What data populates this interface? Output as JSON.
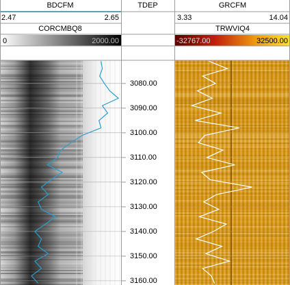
{
  "tracks": [
    {
      "curve": "BDCFM",
      "scale": [
        2.47,
        2.65
      ],
      "image": "CORCMBQ8",
      "image_scale": [
        0,
        {
          "value": 2000,
          "label": "2000.00"
        }
      ]
    },
    {
      "curve": "TDEP"
    },
    {
      "curve": "GRCFM",
      "scale": [
        3.33,
        14.04
      ],
      "image": "TRWVIQ4",
      "image_scale": [
        {
          "value": -32767,
          "label": "-32767.00"
        },
        {
          "value": 32500,
          "label": "32500.00"
        }
      ]
    }
  ],
  "depth_lim": [
    3070.6,
    3161.7
  ],
  "depth_ticks": [
    {
      "value": 3080,
      "label": "3080.00"
    },
    {
      "value": 3090,
      "label": "3090.00"
    },
    {
      "value": 3100,
      "label": "3100.00"
    },
    {
      "value": 3110,
      "label": "3110.00"
    },
    {
      "value": 3120,
      "label": "3120.00"
    },
    {
      "value": 3130,
      "label": "3130.00"
    },
    {
      "value": 3140,
      "label": "3140.00"
    },
    {
      "value": 3150,
      "label": "3150.00"
    },
    {
      "value": 3160,
      "label": "3160.00"
    }
  ],
  "depth": [
    3071,
    3074,
    3077,
    3080,
    3083,
    3086,
    3089,
    3092,
    3095,
    3098,
    3101,
    3104,
    3107,
    3110,
    3113,
    3116,
    3119,
    3122,
    3125,
    3128,
    3131,
    3134,
    3137,
    3140,
    3143,
    3146,
    3149,
    3152,
    3155,
    3158,
    3161
  ],
  "BDCFM": [
    2.62,
    2.622,
    2.618,
    2.625,
    2.633,
    2.646,
    2.622,
    2.63,
    2.617,
    2.62,
    2.592,
    2.575,
    2.56,
    2.555,
    2.54,
    2.562,
    2.545,
    2.531,
    2.541,
    2.526,
    2.531,
    2.552,
    2.537,
    2.521,
    2.531,
    2.526,
    2.541,
    2.521,
    2.531,
    2.516,
    2.526
  ],
  "GRCFM": [
    6.5,
    8.2,
    5.9,
    7.1,
    5.4,
    6.8,
    4.9,
    7.6,
    5.2,
    9.3,
    6.1,
    5.5,
    7.8,
    6.3,
    8.9,
    5.8,
    6.6,
    10.5,
    7.2,
    6.0,
    7.4,
    5.6,
    8.1,
    6.9,
    5.3,
    7.7,
    6.2,
    8.4,
    5.9,
    6.7,
    7.0
  ]
}
